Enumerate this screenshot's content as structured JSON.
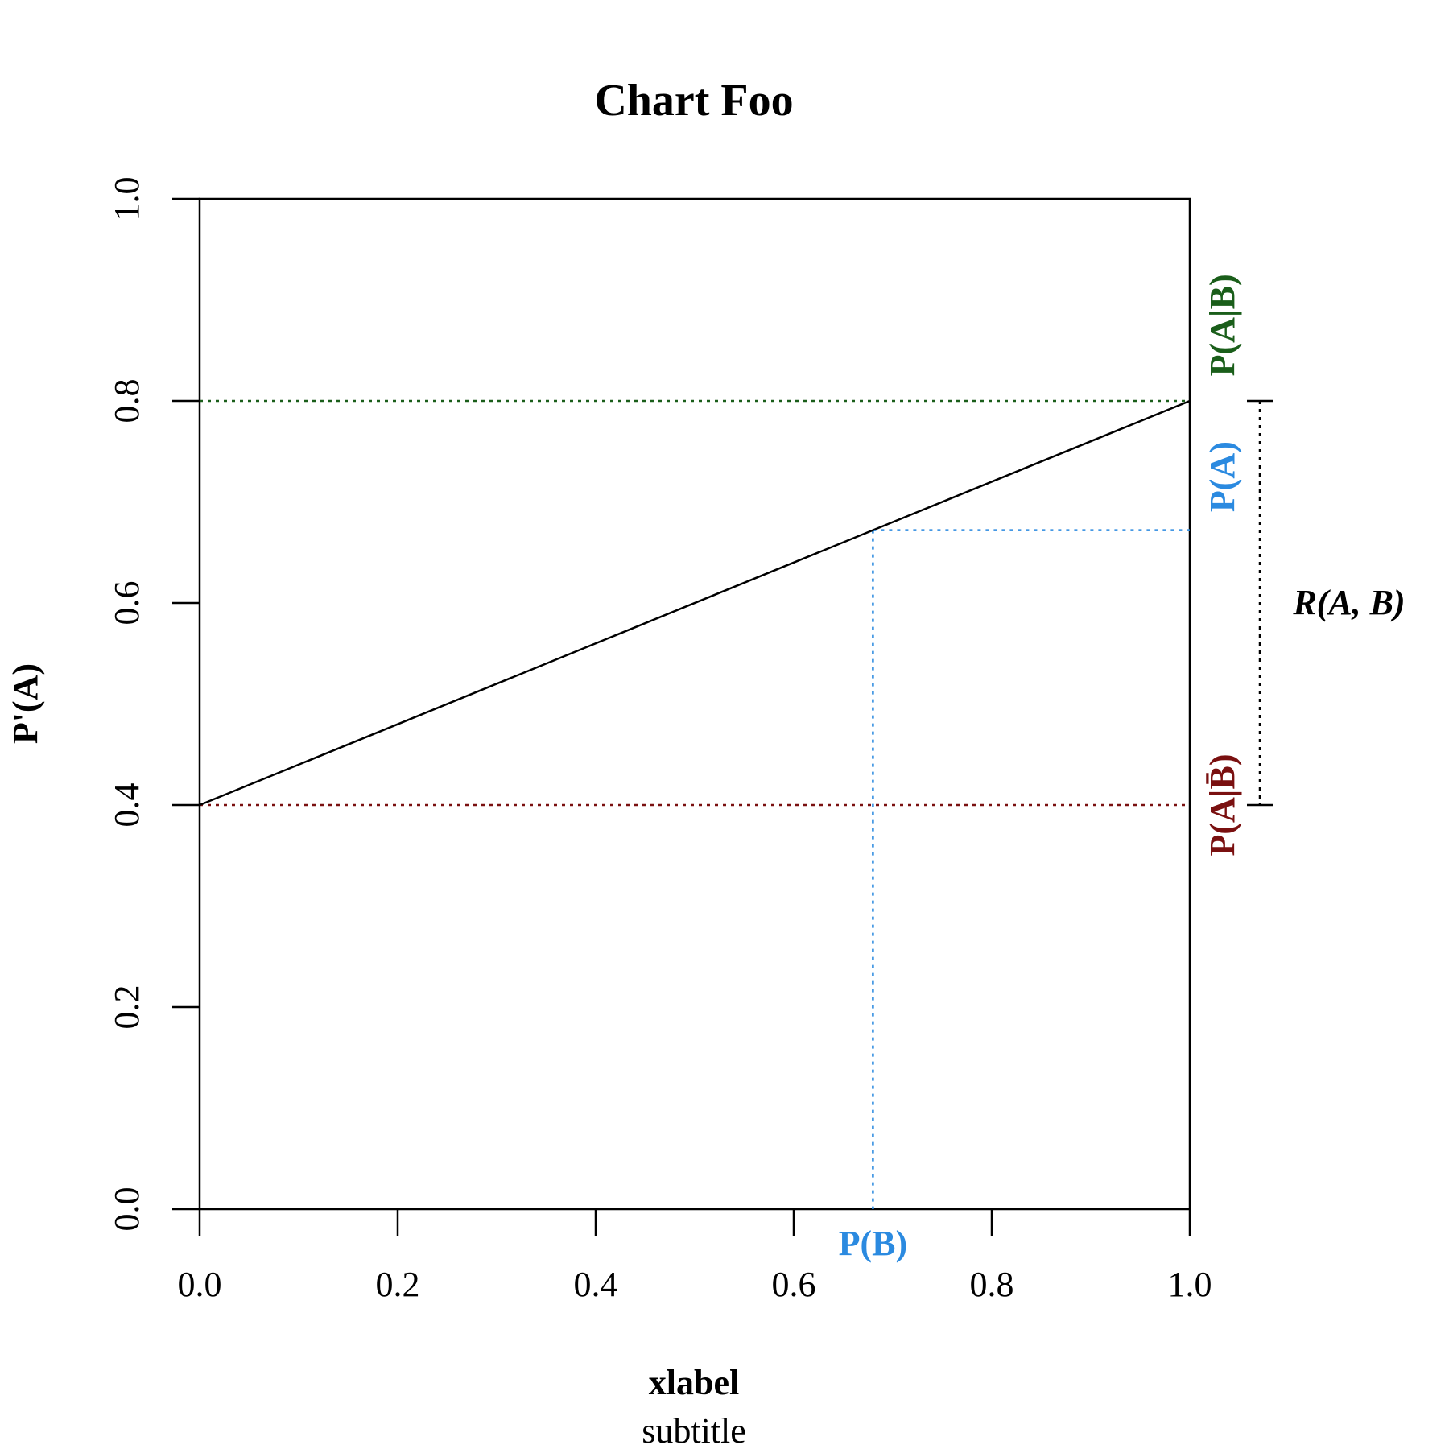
{
  "chart_data": {
    "type": "line",
    "title": "Chart Foo",
    "subtitle": "subtitle",
    "xlabel": "xlabel",
    "ylabel": "P'(A)",
    "xlim": [
      0,
      1
    ],
    "ylim": [
      0,
      1
    ],
    "x_ticks": [
      "0.0",
      "0.2",
      "0.4",
      "0.6",
      "0.8",
      "1.0"
    ],
    "y_ticks": [
      "0.0",
      "0.2",
      "0.4",
      "0.6",
      "0.8",
      "1.0"
    ],
    "grid": false,
    "series": [
      {
        "x": [
          0,
          1
        ],
        "y": [
          0.4,
          0.8
        ],
        "color": "#000000"
      }
    ],
    "reference_lines": {
      "p_a_given_b": {
        "label": "P(A|B)",
        "y": 0.8,
        "color": "#1a5e1a"
      },
      "p_a_given_not_b": {
        "label": "P(A|B̄)",
        "y": 0.4,
        "color": "#7a1010"
      },
      "p_a": {
        "label": "P(A)",
        "y": 0.672,
        "color": "#2b8ae0"
      },
      "p_b": {
        "label": "P(B)",
        "x": 0.68,
        "color": "#2b8ae0"
      }
    },
    "range_annotation": {
      "label": "R(A, B)",
      "from": 0.4,
      "to": 0.8,
      "color": "#000000"
    }
  }
}
